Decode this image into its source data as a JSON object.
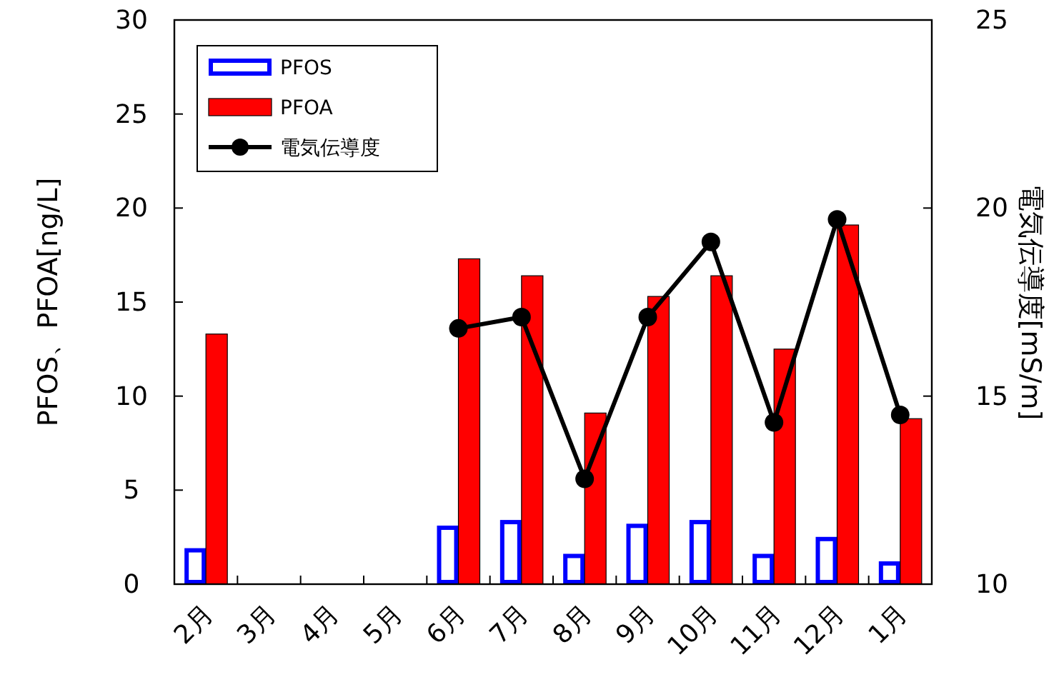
{
  "chart_data": {
    "type": "bar",
    "categories": [
      "2月",
      "3月",
      "4月",
      "5月",
      "6月",
      "7月",
      "8月",
      "9月",
      "10月",
      "11月",
      "12月",
      "1月"
    ],
    "ylabel": "PFOS、PFOA[ng/L]",
    "y2label": "電気伝導度[mS/m]",
    "ylim": [
      0,
      30
    ],
    "yticks": [
      0,
      5,
      10,
      15,
      20,
      25,
      30
    ],
    "y2lim": [
      10,
      25
    ],
    "y2ticks": [
      10,
      15,
      20,
      25
    ],
    "legend": "top left",
    "grid": false,
    "series": [
      {
        "name": "PFOS",
        "color": "#0000ff",
        "values": [
          1.8,
          null,
          null,
          null,
          3.0,
          3.3,
          1.5,
          3.1,
          3.3,
          1.5,
          2.4,
          1.1
        ]
      },
      {
        "name": "PFOA",
        "color": "#ff0000",
        "values": [
          13.3,
          null,
          null,
          null,
          17.3,
          16.4,
          9.1,
          15.3,
          16.4,
          12.5,
          19.1,
          8.8
        ]
      },
      {
        "name": "電気伝導度",
        "type": "line",
        "axis": "y2",
        "color": "#000000",
        "marker": "circle",
        "line_style": "solid",
        "values": [
          null,
          null,
          null,
          null,
          16.8,
          17.1,
          12.8,
          17.1,
          19.1,
          14.3,
          19.7,
          14.5
        ]
      }
    ]
  }
}
